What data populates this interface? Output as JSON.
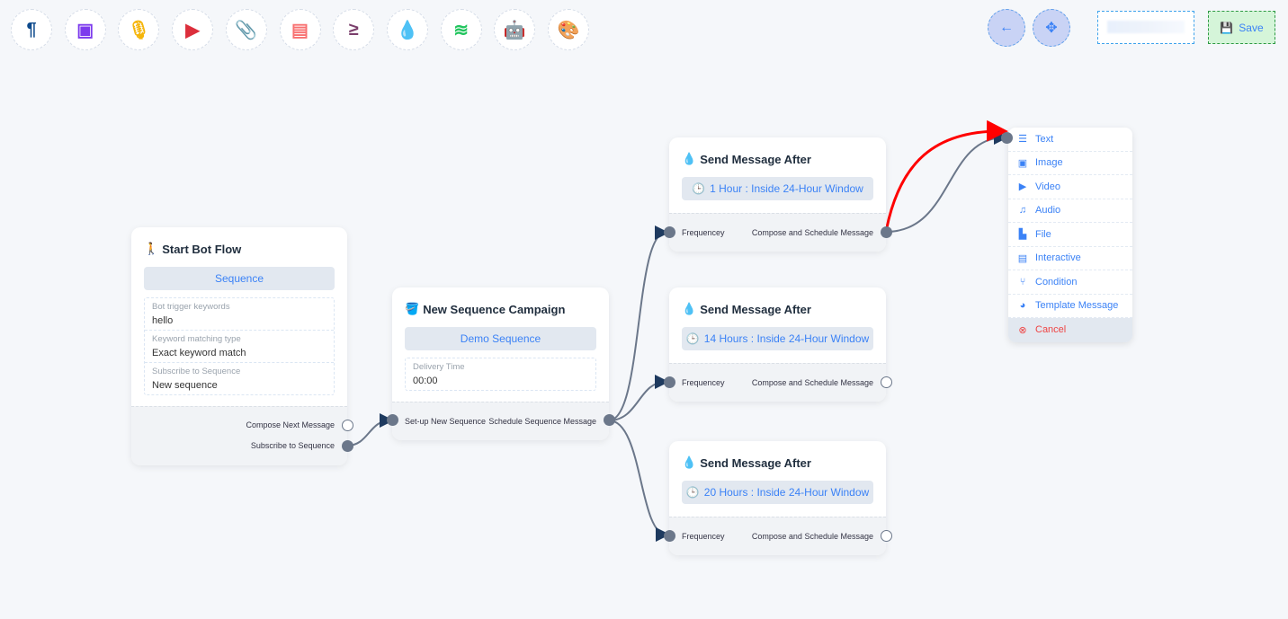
{
  "toolbar": {
    "tools": [
      {
        "icon": "paragraph-icon",
        "glyph": "¶",
        "color": "#0d4a8c"
      },
      {
        "icon": "image-icon",
        "glyph": "▣",
        "color": "#7c3aed"
      },
      {
        "icon": "microphone-icon",
        "glyph": "🎙",
        "color": "#f5b50a"
      },
      {
        "icon": "youtube-icon",
        "glyph": "▶",
        "color": "#dc2f3c"
      },
      {
        "icon": "paperclip-icon",
        "glyph": "📎",
        "color": "#16a34a"
      },
      {
        "icon": "newspaper-icon",
        "glyph": "▤",
        "color": "#f87171"
      },
      {
        "icon": "greater-equal-icon",
        "glyph": "≥",
        "color": "#7a3e6b"
      },
      {
        "icon": "droplet-icon",
        "glyph": "💧",
        "color": "#c8102e"
      },
      {
        "icon": "stack-overflow-icon",
        "glyph": "≋",
        "color": "#22c55e"
      },
      {
        "icon": "robot-icon",
        "glyph": "🤖",
        "color": "#1d1df0"
      },
      {
        "icon": "palette-icon",
        "glyph": "🎨",
        "color": "#1ecb1e"
      }
    ],
    "back_glyph": "←",
    "compress_glyph": "✥",
    "save_label": "Save"
  },
  "start": {
    "title": "Start Bot Flow",
    "pill": "Sequence",
    "fields": [
      {
        "label": "Bot trigger keywords",
        "value": "hello"
      },
      {
        "label": "Keyword matching type",
        "value": "Exact keyword match"
      },
      {
        "label": "Subscribe to Sequence",
        "value": "New sequence"
      }
    ],
    "out1": "Compose Next Message",
    "out2": "Subscribe to Sequence"
  },
  "campaign": {
    "title": "New Sequence Campaign",
    "pill": "Demo Sequence",
    "field_label": "Delivery Time",
    "field_value": "00:00",
    "in": "Set-up New Sequence",
    "out": "Schedule Sequence Message"
  },
  "send_nodes": [
    {
      "title": "Send Message After",
      "pill": "1 Hour : Inside 24-Hour Window",
      "in": "Frequencey",
      "out": "Compose and Schedule Message"
    },
    {
      "title": "Send Message After",
      "pill": "14 Hours : Inside 24-Hour Window",
      "in": "Frequencey",
      "out": "Compose and Schedule Message"
    },
    {
      "title": "Send Message After",
      "pill": "20 Hours : Inside 24-Hour Window",
      "in": "Frequencey",
      "out": "Compose and Schedule Message"
    }
  ],
  "menu": {
    "items": [
      {
        "label": "Text",
        "icon": "list-icon",
        "glyph": "☰"
      },
      {
        "label": "Image",
        "icon": "image-icon",
        "glyph": "▣"
      },
      {
        "label": "Video",
        "icon": "youtube-icon",
        "glyph": "▶"
      },
      {
        "label": "Audio",
        "icon": "music-icon",
        "glyph": "♫"
      },
      {
        "label": "File",
        "icon": "file-pdf-icon",
        "glyph": "▙"
      },
      {
        "label": "Interactive",
        "icon": "newspaper-icon",
        "glyph": "▤"
      },
      {
        "label": "Condition",
        "icon": "code-branch-icon",
        "glyph": "⑂"
      },
      {
        "label": "Template Message",
        "icon": "palette-icon",
        "glyph": "◕"
      }
    ],
    "cancel": "Cancel"
  },
  "colors": {
    "accent": "#3b82f6",
    "edge": "#6b778a",
    "active_edge": "#ff0000"
  }
}
